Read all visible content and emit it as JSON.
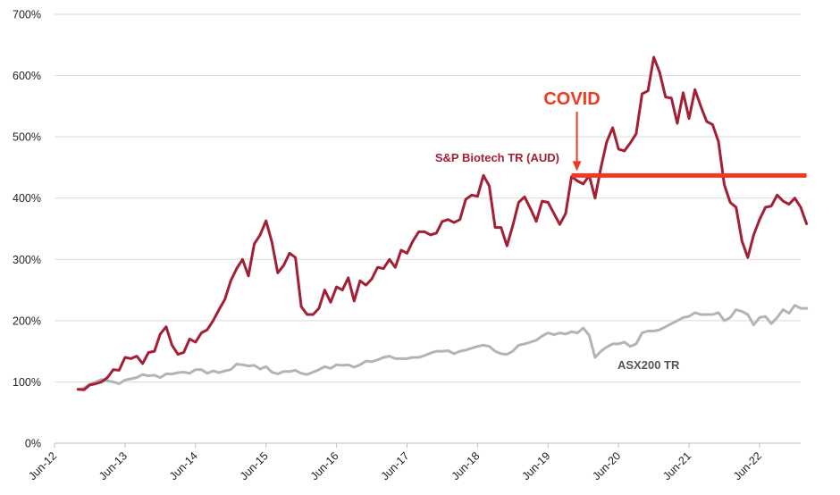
{
  "chart_data": {
    "type": "line",
    "title": "",
    "xlabel": "",
    "ylabel": "",
    "y_unit": "%",
    "ylim": [
      0,
      700
    ],
    "y_ticks": [
      "0%",
      "100%",
      "200%",
      "300%",
      "400%",
      "500%",
      "600%",
      "700%"
    ],
    "x_range": [
      "2012-06",
      "2023-01"
    ],
    "x_ticks": [
      "Jun-12",
      "Jun-13",
      "Jun-14",
      "Jun-15",
      "Jun-16",
      "Jun-17",
      "Jun-18",
      "Jun-19",
      "Jun-20",
      "Jun-21",
      "Jun-22"
    ],
    "grid": "horizontal",
    "legend": "none",
    "series": [
      {
        "name": "S&P Biotech TR (AUD)",
        "color": "#A31F34",
        "points": [
          [
            "2012-10",
            88
          ],
          [
            "2012-11",
            87
          ],
          [
            "2012-12",
            95
          ],
          [
            "2013-01",
            97
          ],
          [
            "2013-02",
            100
          ],
          [
            "2013-03",
            107
          ],
          [
            "2013-04",
            120
          ],
          [
            "2013-05",
            119
          ],
          [
            "2013-06",
            140
          ],
          [
            "2013-07",
            138
          ],
          [
            "2013-08",
            142
          ],
          [
            "2013-09",
            130
          ],
          [
            "2013-10",
            148
          ],
          [
            "2013-11",
            150
          ],
          [
            "2013-12",
            178
          ],
          [
            "2014-01",
            190
          ],
          [
            "2014-02",
            160
          ],
          [
            "2014-03",
            145
          ],
          [
            "2014-04",
            148
          ],
          [
            "2014-05",
            170
          ],
          [
            "2014-06",
            165
          ],
          [
            "2014-07",
            180
          ],
          [
            "2014-08",
            185
          ],
          [
            "2014-09",
            200
          ],
          [
            "2014-10",
            218
          ],
          [
            "2014-11",
            235
          ],
          [
            "2014-12",
            265
          ],
          [
            "2015-01",
            285
          ],
          [
            "2015-02",
            300
          ],
          [
            "2015-03",
            273
          ],
          [
            "2015-04",
            325
          ],
          [
            "2015-05",
            340
          ],
          [
            "2015-06",
            363
          ],
          [
            "2015-07",
            328
          ],
          [
            "2015-08",
            278
          ],
          [
            "2015-09",
            290
          ],
          [
            "2015-10",
            310
          ],
          [
            "2015-11",
            303
          ],
          [
            "2015-12",
            223
          ],
          [
            "2016-01",
            210
          ],
          [
            "2016-02",
            210
          ],
          [
            "2016-03",
            220
          ],
          [
            "2016-04",
            250
          ],
          [
            "2016-05",
            230
          ],
          [
            "2016-06",
            255
          ],
          [
            "2016-07",
            250
          ],
          [
            "2016-08",
            270
          ],
          [
            "2016-09",
            232
          ],
          [
            "2016-10",
            265
          ],
          [
            "2016-11",
            258
          ],
          [
            "2016-12",
            268
          ],
          [
            "2017-01",
            287
          ],
          [
            "2017-02",
            285
          ],
          [
            "2017-03",
            300
          ],
          [
            "2017-04",
            287
          ],
          [
            "2017-05",
            315
          ],
          [
            "2017-06",
            310
          ],
          [
            "2017-07",
            330
          ],
          [
            "2017-08",
            345
          ],
          [
            "2017-09",
            345
          ],
          [
            "2017-10",
            340
          ],
          [
            "2017-11",
            343
          ],
          [
            "2017-12",
            362
          ],
          [
            "2018-01",
            365
          ],
          [
            "2018-02",
            360
          ],
          [
            "2018-03",
            365
          ],
          [
            "2018-04",
            398
          ],
          [
            "2018-05",
            405
          ],
          [
            "2018-06",
            403
          ],
          [
            "2018-07",
            437
          ],
          [
            "2018-08",
            420
          ],
          [
            "2018-09",
            352
          ],
          [
            "2018-10",
            352
          ],
          [
            "2018-11",
            322
          ],
          [
            "2018-12",
            355
          ],
          [
            "2019-01",
            393
          ],
          [
            "2019-02",
            402
          ],
          [
            "2019-03",
            383
          ],
          [
            "2019-04",
            362
          ],
          [
            "2019-05",
            395
          ],
          [
            "2019-06",
            393
          ],
          [
            "2019-07",
            375
          ],
          [
            "2019-08",
            357
          ],
          [
            "2019-09",
            375
          ],
          [
            "2019-10",
            435
          ],
          [
            "2019-11",
            428
          ],
          [
            "2019-12",
            423
          ],
          [
            "2020-01",
            437
          ],
          [
            "2020-02",
            400
          ],
          [
            "2020-03",
            450
          ],
          [
            "2020-04",
            492
          ],
          [
            "2020-05",
            515
          ],
          [
            "2020-06",
            480
          ],
          [
            "2020-07",
            477
          ],
          [
            "2020-08",
            490
          ],
          [
            "2020-09",
            505
          ],
          [
            "2020-10",
            570
          ],
          [
            "2020-11",
            575
          ],
          [
            "2020-12",
            630
          ],
          [
            "2021-01",
            605
          ],
          [
            "2021-02",
            565
          ],
          [
            "2021-03",
            563
          ],
          [
            "2021-04",
            522
          ],
          [
            "2021-05",
            572
          ],
          [
            "2021-06",
            530
          ],
          [
            "2021-07",
            577
          ],
          [
            "2021-08",
            550
          ],
          [
            "2021-09",
            525
          ],
          [
            "2021-10",
            520
          ],
          [
            "2021-11",
            492
          ],
          [
            "2021-12",
            422
          ],
          [
            "2022-01",
            393
          ],
          [
            "2022-02",
            385
          ],
          [
            "2022-03",
            330
          ],
          [
            "2022-04",
            303
          ],
          [
            "2022-05",
            340
          ],
          [
            "2022-06",
            365
          ],
          [
            "2022-07",
            385
          ],
          [
            "2022-08",
            387
          ],
          [
            "2022-09",
            405
          ],
          [
            "2022-10",
            395
          ],
          [
            "2022-11",
            390
          ],
          [
            "2022-12",
            400
          ],
          [
            "2023-01",
            385
          ],
          [
            "2023-02",
            358
          ]
        ]
      },
      {
        "name": "ASX200 TR",
        "color": "#B4B4B4",
        "points": [
          [
            "2012-10",
            88
          ],
          [
            "2012-11",
            90
          ],
          [
            "2012-12",
            96
          ],
          [
            "2013-01",
            100
          ],
          [
            "2013-02",
            104
          ],
          [
            "2013-03",
            102
          ],
          [
            "2013-04",
            100
          ],
          [
            "2013-05",
            97
          ],
          [
            "2013-06",
            103
          ],
          [
            "2013-07",
            105
          ],
          [
            "2013-08",
            107
          ],
          [
            "2013-09",
            112
          ],
          [
            "2013-10",
            110
          ],
          [
            "2013-11",
            111
          ],
          [
            "2013-12",
            107
          ],
          [
            "2014-01",
            113
          ],
          [
            "2014-02",
            113
          ],
          [
            "2014-03",
            115
          ],
          [
            "2014-04",
            116
          ],
          [
            "2014-05",
            114
          ],
          [
            "2014-06",
            120
          ],
          [
            "2014-07",
            120
          ],
          [
            "2014-08",
            114
          ],
          [
            "2014-09",
            118
          ],
          [
            "2014-10",
            115
          ],
          [
            "2014-11",
            118
          ],
          [
            "2014-12",
            120
          ],
          [
            "2015-01",
            129
          ],
          [
            "2015-02",
            128
          ],
          [
            "2015-03",
            126
          ],
          [
            "2015-04",
            127
          ],
          [
            "2015-05",
            121
          ],
          [
            "2015-06",
            125
          ],
          [
            "2015-07",
            116
          ],
          [
            "2015-08",
            113
          ],
          [
            "2015-09",
            117
          ],
          [
            "2015-10",
            117
          ],
          [
            "2015-11",
            119
          ],
          [
            "2015-12",
            114
          ],
          [
            "2016-01",
            112
          ],
          [
            "2016-02",
            116
          ],
          [
            "2016-03",
            120
          ],
          [
            "2016-04",
            125
          ],
          [
            "2016-05",
            122
          ],
          [
            "2016-06",
            128
          ],
          [
            "2016-07",
            127
          ],
          [
            "2016-08",
            128
          ],
          [
            "2016-09",
            124
          ],
          [
            "2016-10",
            128
          ],
          [
            "2016-11",
            134
          ],
          [
            "2016-12",
            133
          ],
          [
            "2017-01",
            136
          ],
          [
            "2017-02",
            140
          ],
          [
            "2017-03",
            142
          ],
          [
            "2017-04",
            138
          ],
          [
            "2017-05",
            138
          ],
          [
            "2017-06",
            138
          ],
          [
            "2017-07",
            140
          ],
          [
            "2017-08",
            140
          ],
          [
            "2017-09",
            143
          ],
          [
            "2017-10",
            147
          ],
          [
            "2017-11",
            150
          ],
          [
            "2017-12",
            150
          ],
          [
            "2018-01",
            151
          ],
          [
            "2018-02",
            146
          ],
          [
            "2018-03",
            150
          ],
          [
            "2018-04",
            152
          ],
          [
            "2018-05",
            155
          ],
          [
            "2018-06",
            158
          ],
          [
            "2018-07",
            160
          ],
          [
            "2018-08",
            158
          ],
          [
            "2018-09",
            150
          ],
          [
            "2018-10",
            146
          ],
          [
            "2018-11",
            145
          ],
          [
            "2018-12",
            150
          ],
          [
            "2019-01",
            160
          ],
          [
            "2019-02",
            162
          ],
          [
            "2019-03",
            165
          ],
          [
            "2019-04",
            168
          ],
          [
            "2019-05",
            175
          ],
          [
            "2019-06",
            180
          ],
          [
            "2019-07",
            177
          ],
          [
            "2019-08",
            180
          ],
          [
            "2019-09",
            178
          ],
          [
            "2019-10",
            182
          ],
          [
            "2019-11",
            180
          ],
          [
            "2019-12",
            188
          ],
          [
            "2020-01",
            176
          ],
          [
            "2020-02",
            140
          ],
          [
            "2020-03",
            150
          ],
          [
            "2020-04",
            157
          ],
          [
            "2020-05",
            162
          ],
          [
            "2020-06",
            162
          ],
          [
            "2020-07",
            165
          ],
          [
            "2020-08",
            158
          ],
          [
            "2020-09",
            162
          ],
          [
            "2020-10",
            180
          ],
          [
            "2020-11",
            183
          ],
          [
            "2020-12",
            183
          ],
          [
            "2021-01",
            185
          ],
          [
            "2021-02",
            190
          ],
          [
            "2021-03",
            195
          ],
          [
            "2021-04",
            200
          ],
          [
            "2021-05",
            205
          ],
          [
            "2021-06",
            207
          ],
          [
            "2021-07",
            213
          ],
          [
            "2021-08",
            210
          ],
          [
            "2021-09",
            210
          ],
          [
            "2021-10",
            210
          ],
          [
            "2021-11",
            213
          ],
          [
            "2021-12",
            200
          ],
          [
            "2022-01",
            205
          ],
          [
            "2022-02",
            218
          ],
          [
            "2022-03",
            215
          ],
          [
            "2022-04",
            210
          ],
          [
            "2022-05",
            193
          ],
          [
            "2022-06",
            205
          ],
          [
            "2022-07",
            207
          ],
          [
            "2022-08",
            195
          ],
          [
            "2022-09",
            205
          ],
          [
            "2022-10",
            218
          ],
          [
            "2022-11",
            212
          ],
          [
            "2022-12",
            225
          ],
          [
            "2023-01",
            220
          ],
          [
            "2023-02",
            220
          ]
        ]
      }
    ],
    "annotations": [
      {
        "text": "COVID",
        "color": "#EE3A23",
        "arrow_to": [
          "2019-10",
          437
        ]
      },
      {
        "text": "",
        "kind": "horizontal_line",
        "y": 437,
        "x_from": "2019-10",
        "x_to": "2023-02",
        "color": "#EE3A23"
      }
    ]
  }
}
